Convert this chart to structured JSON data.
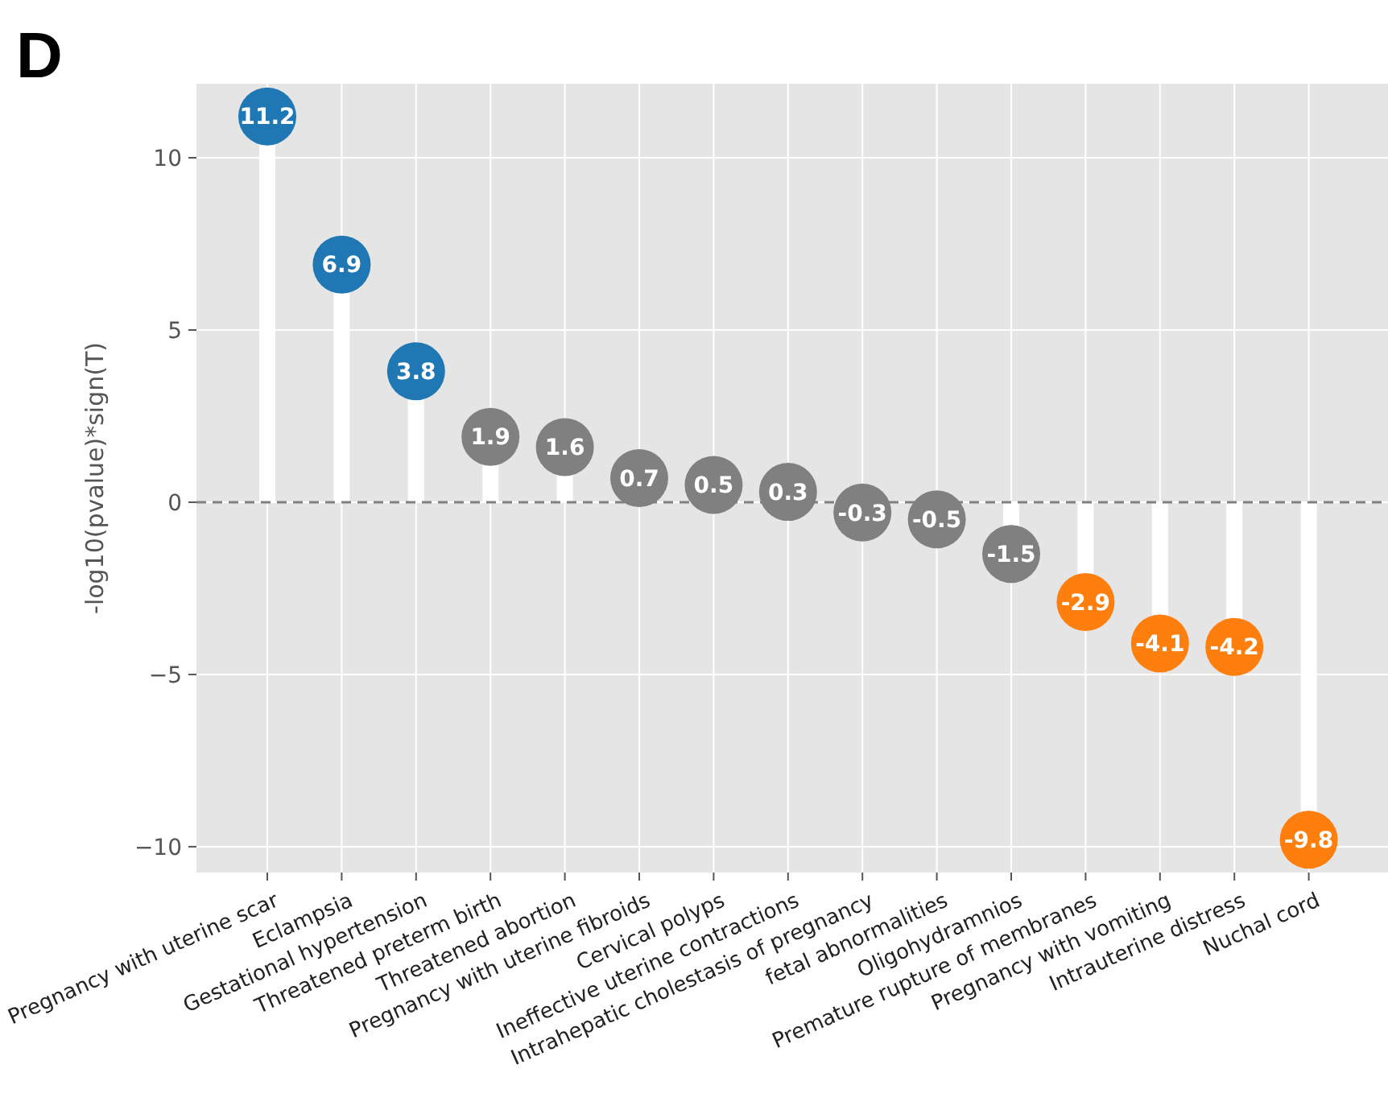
{
  "chart_data": {
    "type": "lollipop",
    "title": "D",
    "ylabel": "-log10(pvalue)*sign(T)",
    "categories": [
      "Pregnancy with uterine scar",
      "Eclampsia",
      "Gestational hypertension",
      "Threatened preterm birth",
      "Threatened abortion",
      "Pregnancy with uterine fibroids",
      "Cervical polyps",
      "Ineffective uterine contractions",
      "Intrahepatic cholestasis of pregnancy",
      "fetal abnormalities",
      "Oligohydramnios",
      "Premature rupture of membranes",
      "Pregnancy with vomiting",
      "Intrauterine distress",
      "Nuchal cord"
    ],
    "values": [
      11.2,
      6.9,
      3.8,
      1.9,
      1.6,
      0.7,
      0.5,
      0.3,
      -0.3,
      -0.5,
      -1.5,
      -2.9,
      -4.1,
      -4.2,
      -9.8
    ],
    "colors": [
      "#1f77b4",
      "#1f77b4",
      "#1f77b4",
      "#808080",
      "#808080",
      "#808080",
      "#808080",
      "#808080",
      "#808080",
      "#808080",
      "#808080",
      "#ff7f0e",
      "#ff7f0e",
      "#ff7f0e",
      "#ff7f0e"
    ],
    "ylim": [
      -10.75,
      12.15
    ],
    "yticks": [
      {
        "value": -10,
        "label": "−10"
      },
      {
        "value": -5,
        "label": "−5"
      },
      0,
      5,
      10
    ],
    "ref_lines": [
      {
        "axis": "y",
        "value": 0,
        "color": "#808080",
        "line_style": "dashed"
      }
    ],
    "data_labels": true,
    "grid": true,
    "marker": "circle"
  }
}
